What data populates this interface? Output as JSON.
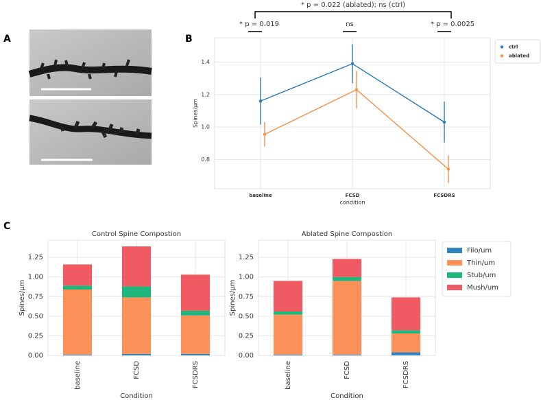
{
  "panel_labels": [
    "A",
    "B",
    "C"
  ],
  "chart_data": [
    {
      "type": "line",
      "xlabel": "condition",
      "ylabel": "Spines/µm",
      "categories": [
        "baseline",
        "FCSD",
        "FCSDRS"
      ],
      "ylim": [
        0.62,
        1.55
      ],
      "yticks": [
        0.8,
        {
          "value": 1,
          "label": "1.0"
        },
        1.2,
        1.4
      ],
      "grid": true,
      "legend": "outside-right",
      "series": [
        {
          "name": "ctrl",
          "color": "#2a7ab9",
          "values": [
            1.16,
            1.39,
            1.03
          ],
          "errors": [
            0.145,
            0.12,
            0.125
          ]
        },
        {
          "name": "ablated",
          "color": "#f5914a",
          "values": [
            0.955,
            1.23,
            0.74
          ],
          "errors": [
            0.075,
            0.115,
            0.085
          ]
        }
      ],
      "annotations": [
        "* p = 0.022 (ablated); ns (ctrl)",
        "* p = 0.019",
        "ns",
        "* p = 0.0025"
      ]
    },
    {
      "type": "bar",
      "stacked": true,
      "title": "Control Spine Compostion",
      "xlabel": "Condition",
      "ylabel": "Spines/µm",
      "categories": [
        "baseline",
        "FCSD",
        "FCSDRS"
      ],
      "ylim": [
        0,
        1.47
      ],
      "yticks": [
        {
          "value": 0,
          "label": "0.00"
        },
        0.25,
        {
          "value": 0.5,
          "label": "0.50"
        },
        0.75,
        {
          "value": 1,
          "label": "1.00"
        },
        1.25
      ],
      "grid": true,
      "series": [
        {
          "color": "#3182bd",
          "values": [
            0.01,
            0.02,
            0.02
          ]
        },
        {
          "color": "#fb9059",
          "values": [
            0.83,
            0.72,
            0.49
          ]
        },
        {
          "color": "#1db67b",
          "values": [
            0.05,
            0.14,
            0.06
          ]
        },
        {
          "color": "#ef5a63",
          "values": [
            0.27,
            0.51,
            0.46
          ]
        }
      ]
    },
    {
      "type": "bar",
      "stacked": true,
      "title": "Ablated Spine Compostion",
      "xlabel": "Condition",
      "ylabel": "Spines/µm",
      "categories": [
        "baseline",
        "FCSD",
        "FCSDRS"
      ],
      "ylim": [
        0,
        1.47
      ],
      "yticks": [
        {
          "value": 0,
          "label": "0.00"
        },
        0.25,
        {
          "value": 0.5,
          "label": "0.50"
        },
        0.75,
        {
          "value": 1,
          "label": "1.00"
        },
        1.25
      ],
      "grid": true,
      "legend": "outside-right",
      "series": [
        {
          "name": "Filo/um",
          "color": "#3182bd",
          "values": [
            0.01,
            0.01,
            0.04
          ]
        },
        {
          "name": "Thin/um",
          "color": "#fb9059",
          "values": [
            0.51,
            0.94,
            0.24
          ]
        },
        {
          "name": "Stub/um",
          "color": "#1db67b",
          "values": [
            0.04,
            0.05,
            0.04
          ]
        },
        {
          "name": "Mush/um",
          "color": "#ef5a63",
          "values": [
            0.39,
            0.23,
            0.42
          ]
        }
      ]
    }
  ]
}
